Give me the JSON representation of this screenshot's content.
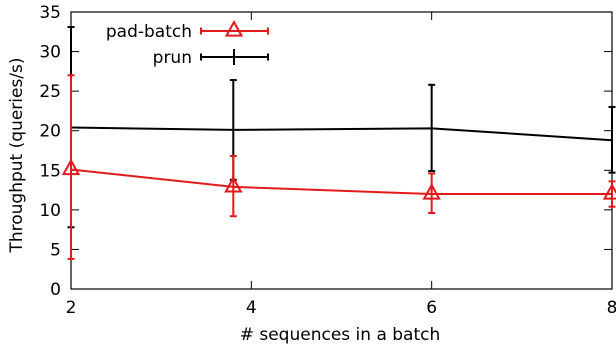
{
  "chart_data": {
    "type": "line",
    "title": "",
    "xlabel": "# sequences in a batch",
    "ylabel": "Throughput (queries/s)",
    "xlim": [
      2,
      8
    ],
    "ylim": [
      0,
      35
    ],
    "x_ticks": [
      2,
      4,
      6,
      8
    ],
    "y_ticks": [
      0,
      5,
      10,
      15,
      20,
      25,
      30,
      35
    ],
    "grid": false,
    "legend_position": "top-left",
    "series": [
      {
        "name": "pad-batch",
        "color": "#e31a1c",
        "marker": "triangle",
        "x": [
          2,
          3.8,
          6,
          8
        ],
        "y": [
          15.1,
          12.9,
          12.0,
          12.0
        ],
        "err_low": [
          3.8,
          9.2,
          9.6,
          10.4
        ],
        "err_high": [
          27.0,
          16.8,
          14.6,
          13.6
        ]
      },
      {
        "name": "prun",
        "color": "#000000",
        "marker": "none",
        "x": [
          2,
          3.8,
          6,
          8
        ],
        "y": [
          20.4,
          20.1,
          20.3,
          18.8
        ],
        "err_low": [
          7.8,
          13.8,
          14.9,
          14.7
        ],
        "err_high": [
          33.1,
          26.4,
          25.8,
          23.0
        ]
      }
    ]
  }
}
